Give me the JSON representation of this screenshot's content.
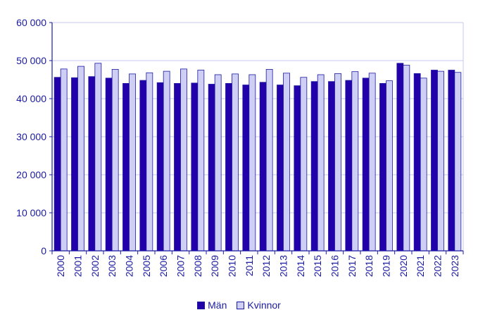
{
  "colors": {
    "axis": "#1a1aa0",
    "grid": "#c8c8f0",
    "series_0": "#2200aa",
    "series_1": "#cfcff5",
    "bar_stroke": "#1a1aa0"
  },
  "chart_data": {
    "type": "bar",
    "title": "",
    "xlabel": "",
    "ylabel": "",
    "ylim": [
      0,
      60000
    ],
    "yticks": [
      0,
      10000,
      20000,
      30000,
      40000,
      50000,
      60000
    ],
    "ytick_labels": [
      "0",
      "10 000",
      "20 000",
      "30 000",
      "40 000",
      "50 000",
      "60 000"
    ],
    "grid": true,
    "legend": "bottom-center",
    "categories": [
      "2000",
      "2001",
      "2002",
      "2003",
      "2004",
      "2005",
      "2006",
      "2007",
      "2008",
      "2009",
      "2010",
      "2011",
      "2012",
      "2013",
      "2014",
      "2015",
      "2016",
      "2017",
      "2018",
      "2019",
      "2020",
      "2021",
      "2022",
      "2023"
    ],
    "series": [
      {
        "name": "Män",
        "values": [
          45600,
          45500,
          45800,
          45400,
          44000,
          44800,
          44200,
          44000,
          44100,
          43800,
          44000,
          43600,
          44300,
          43600,
          43400,
          44500,
          44500,
          44800,
          45400,
          44000,
          49300,
          46600,
          47500,
          47500
        ]
      },
      {
        "name": "Kvinnor",
        "values": [
          47800,
          48500,
          49300,
          47700,
          46500,
          46800,
          47200,
          47800,
          47500,
          46300,
          46500,
          46300,
          47700,
          46700,
          45600,
          46300,
          46600,
          47100,
          46700,
          44700,
          48800,
          45400,
          47200,
          46900
        ]
      }
    ]
  }
}
